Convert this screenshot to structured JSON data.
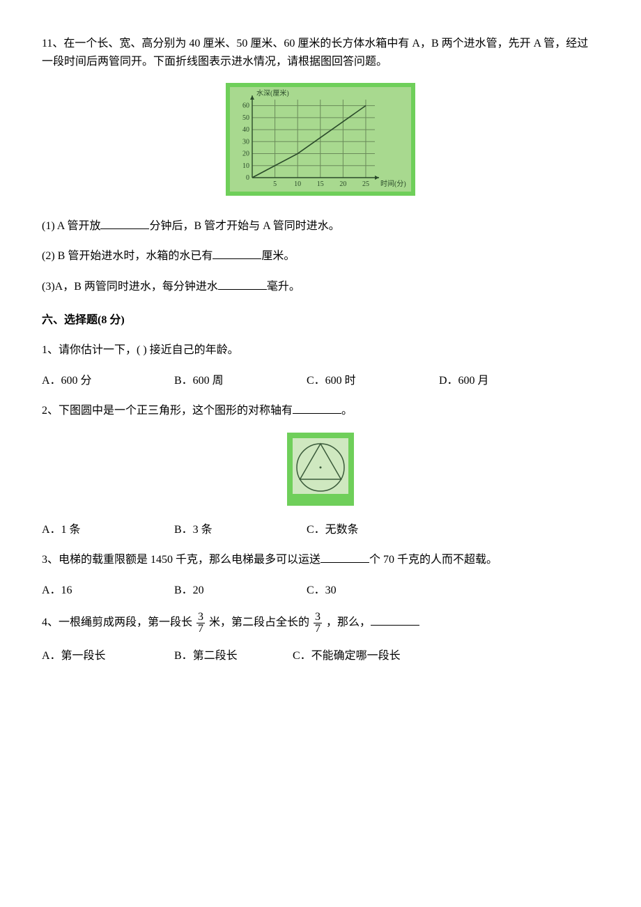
{
  "q11": {
    "stem": "11、在一个长、宽、高分别为 40 厘米、50 厘米、60 厘米的长方体水箱中有 A，B 两个进水管，先开 A 管，经过一段时间后两管同开。下面折线图表示进水情况，请根据图回答问题。",
    "sub1_a": "(1) A 管开放",
    "sub1_b": "分钟后，B 管才开始与 A 管同时进水。",
    "sub2_a": "(2) B 管开始进水时，水箱的水已有",
    "sub2_b": "厘米。",
    "sub3_a": "(3)A，B 两管同时进水，每分钟进水",
    "sub3_b": "毫升。",
    "chart": {
      "type": "line",
      "bg_outer": "#6fcf5a",
      "bg_inner": "#a8d98f",
      "grid_color": "#6a8a5a",
      "line_color": "#2a4a2a",
      "line_width": 1.6,
      "arrow_color": "#2a4a2a",
      "y_label": "水深(厘米)",
      "y_label_fontsize": 10,
      "x_label": "时间(分)",
      "x_label_fontsize": 10,
      "x_ticks": [
        5,
        10,
        15,
        20,
        25
      ],
      "y_ticks": [
        0,
        10,
        20,
        30,
        40,
        50,
        60
      ],
      "xlim": [
        0,
        27
      ],
      "ylim": [
        0,
        65
      ],
      "points": [
        [
          0,
          0
        ],
        [
          10,
          20
        ],
        [
          25,
          60
        ]
      ]
    }
  },
  "section6": "六、选择题(8 分)",
  "mc1": {
    "stem": "1、请你估计一下，(  ) 接近自己的年龄。",
    "A": "A．600 分",
    "B": "B．600 周",
    "C": "C．600 时",
    "D": "D．600 月"
  },
  "mc2": {
    "stem_a": "2、下图圆中是一个正三角形，这个图形的对称轴有",
    "stem_b": "。",
    "A": "A．1 条",
    "B": "B．3 条",
    "C": "C．无数条",
    "fig": {
      "bg": "#6fcf5a",
      "circle_stroke": "#3a5a3a",
      "tri_stroke": "#3a5a3a",
      "fill": "#cfe8c0",
      "r": 34,
      "stroke_width": 1.5
    }
  },
  "mc3": {
    "stem_a": "3、电梯的载重限额是 1450 千克，那么电梯最多可以运送",
    "stem_b": "个 70 千克的人而不超载。",
    "A": "A．16",
    "B": "B．20",
    "C": "C．30"
  },
  "mc4": {
    "stem_a": "4、一根绳剪成两段，第一段长",
    "frac1_num": "3",
    "frac1_den": "7",
    "stem_b": "米，第二段占全长的",
    "frac2_num": "3",
    "frac2_den": "7",
    "stem_c": "，那么，",
    "A": "A．第一段长",
    "B": "B．第二段长",
    "C": "C．不能确定哪一段长"
  }
}
